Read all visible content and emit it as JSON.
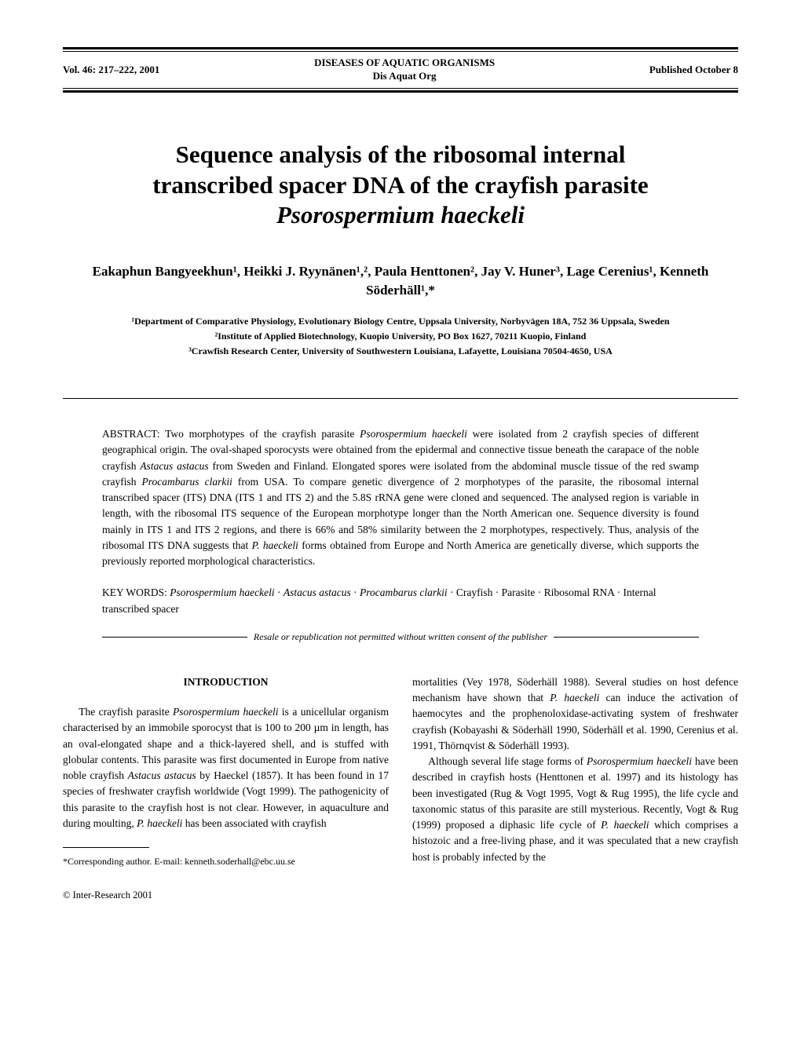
{
  "header": {
    "left": "Vol. 46: 217–222, 2001",
    "center_top": "DISEASES OF AQUATIC ORGANISMS",
    "center_bottom": "Dis Aquat Org",
    "right": "Published October 8"
  },
  "title": {
    "line1": "Sequence analysis of the ribosomal internal",
    "line2": "transcribed spacer DNA of the crayfish parasite",
    "line3_italic": "Psorospermium haeckeli"
  },
  "authors": "Eakaphun Bangyeekhun¹, Heikki J. Ryynänen¹,², Paula Henttonen², Jay V. Huner³, Lage Cerenius¹, Kenneth Söderhäll¹,*",
  "affiliations": {
    "a1": "¹Department of Comparative Physiology, Evolutionary Biology Centre, Uppsala University, Norbyvägen 18A, 752 36 Uppsala, Sweden",
    "a2": "²Institute of Applied Biotechnology, Kuopio University, PO Box 1627, 70211 Kuopio, Finland",
    "a3": "³Crawfish Research Center, University of Southwestern Louisiana, Lafayette, Louisiana 70504-4650, USA"
  },
  "abstract": {
    "label": "ABSTRACT:",
    "text_parts": [
      {
        "t": " Two morphotypes of the crayfish parasite ",
        "i": false
      },
      {
        "t": "Psorospermium haeckeli",
        "i": true
      },
      {
        "t": " were isolated from 2 crayfish species of different geographical origin. The oval-shaped sporocysts were obtained from the epidermal and connective tissue beneath the carapace of the noble crayfish ",
        "i": false
      },
      {
        "t": "Astacus astacus",
        "i": true
      },
      {
        "t": " from Sweden and Finland. Elongated spores were isolated from the abdominal muscle tissue of the red swamp crayfish ",
        "i": false
      },
      {
        "t": "Procambarus clarkii",
        "i": true
      },
      {
        "t": " from USA. To compare genetic divergence of 2 morphotypes of the parasite, the ribosomal internal transcribed spacer (ITS) DNA (ITS 1 and ITS 2) and the 5.8S rRNA gene were cloned and sequenced. The analysed region is variable in length, with the ribosomal ITS sequence of the European morphotype longer than the North American one. Sequence diversity is found mainly in ITS 1 and ITS 2 regions, and there is 66% and 58% similarity between the 2 morphotypes, respectively. Thus, analysis of the ribosomal ITS DNA suggests that ",
        "i": false
      },
      {
        "t": "P. haeckeli",
        "i": true
      },
      {
        "t": " forms obtained from Europe and North America are genetically diverse, which supports the previously reported morphological characteristics.",
        "i": false
      }
    ]
  },
  "keywords": {
    "label": "KEY WORDS:",
    "parts": [
      {
        "t": "  ",
        "i": false
      },
      {
        "t": "Psorospermium haeckeli",
        "i": true
      },
      {
        "t": " · ",
        "i": false
      },
      {
        "t": "Astacus astacus",
        "i": true
      },
      {
        "t": " · ",
        "i": false
      },
      {
        "t": "Procambarus clarkii",
        "i": true
      },
      {
        "t": " · Crayfish · Parasite · Ribosomal RNA · Internal transcribed spacer",
        "i": false
      }
    ]
  },
  "resale": "Resale or republication not permitted without written consent of the publisher",
  "section_heading": "INTRODUCTION",
  "col_left": {
    "para1_parts": [
      {
        "t": "The crayfish parasite ",
        "i": false
      },
      {
        "t": "Psorospermium haeckeli",
        "i": true
      },
      {
        "t": " is a unicellular organism characterised by an immobile sporocyst that is 100 to 200 µm in length, has an oval-elongated shape and a thick-layered shell, and is stuffed with globular contents. This parasite was first documented in Europe from native noble crayfish ",
        "i": false
      },
      {
        "t": "Astacus astacus",
        "i": true
      },
      {
        "t": " by Haeckel (1857). It has been found in 17 species of freshwater crayfish worldwide (Vogt 1999). The pathogenicity of this parasite to the crayfish host is not clear. However, in aquaculture and during moulting, ",
        "i": false
      },
      {
        "t": "P. haeckeli",
        "i": true
      },
      {
        "t": " has been associated with crayfish",
        "i": false
      }
    ]
  },
  "col_right": {
    "para1_parts": [
      {
        "t": "mortalities (Vey 1978, Söderhäll 1988). Several studies on host defence mechanism have shown that ",
        "i": false
      },
      {
        "t": "P. haeckeli",
        "i": true
      },
      {
        "t": " can induce the activation of haemocytes and the prophenoloxidase-activating system of freshwater crayfish (Kobayashi & Söderhäll 1990, Söderhäll et al. 1990, Cerenius et al. 1991, Thörnqvist & Söderhäll 1993).",
        "i": false
      }
    ],
    "para2_parts": [
      {
        "t": "Although several life stage forms of ",
        "i": false
      },
      {
        "t": "Psorospermium haeckeli",
        "i": true
      },
      {
        "t": " have been described in crayfish hosts (Henttonen et al. 1997) and its histology has been investigated (Rug & Vogt 1995, Vogt & Rug 1995), the life cycle and taxonomic status of this parasite are still mysterious. Recently, Vogt & Rug (1999) proposed a diphasic life cycle of ",
        "i": false
      },
      {
        "t": "P. haeckeli",
        "i": true
      },
      {
        "t": " which comprises a histozoic and a free-living phase, and it was speculated that a new crayfish host is probably infected by the",
        "i": false
      }
    ]
  },
  "footnote": "*Corresponding author. E-mail: kenneth.soderhall@ebc.uu.se",
  "copyright": "© Inter-Research 2001"
}
